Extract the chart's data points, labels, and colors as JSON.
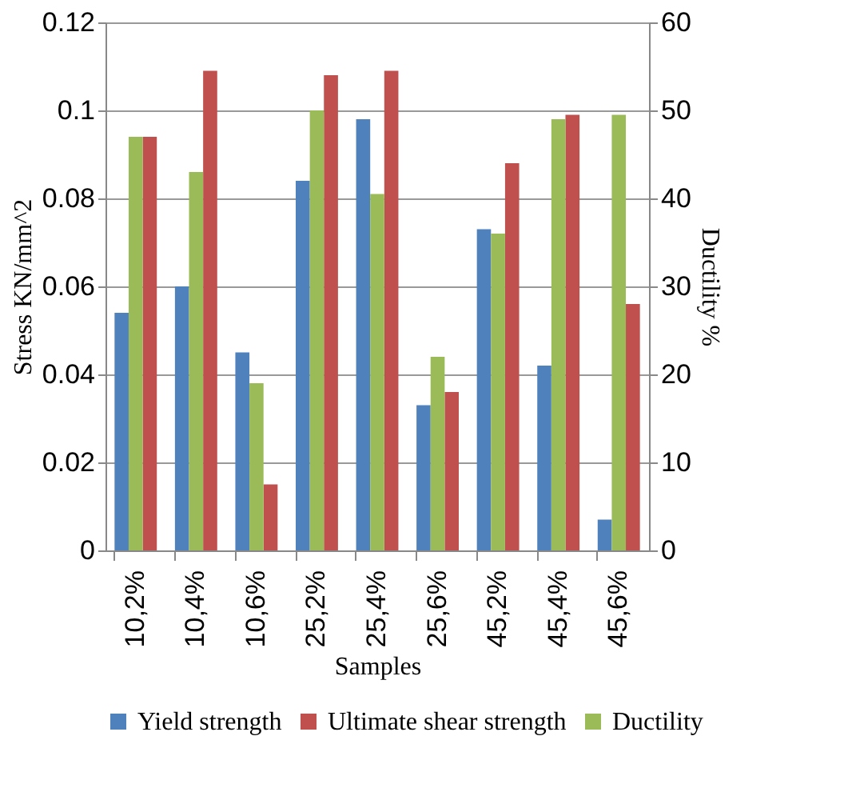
{
  "chart_data": {
    "type": "bar",
    "xlabel": "Samples",
    "ylabel": "Stress KN/mm^2",
    "y2label": "Ductility %",
    "categories": [
      "10,2%",
      "10,4%",
      "10,6%",
      "25,2%",
      "25,4%",
      "25,6%",
      "45,2%",
      "45,4%",
      "45,6%"
    ],
    "series": [
      {
        "name": "Yield strength",
        "color": "#4f81bd",
        "values": [
          0.054,
          0.06,
          0.045,
          0.084,
          0.098,
          0.033,
          0.073,
          0.042,
          0.007
        ]
      },
      {
        "name": "Ultimate shear strength",
        "color": "#c0504d",
        "values": [
          0.094,
          0.109,
          0.015,
          0.108,
          0.109,
          0.036,
          0.088,
          0.099,
          0.056
        ]
      },
      {
        "name": "Ductility",
        "color": "#9bbb59",
        "axis": "y2",
        "values": [
          47,
          43,
          19,
          50,
          40.5,
          22,
          36,
          49,
          49.5
        ]
      }
    ],
    "ylim": [
      0,
      0.12
    ],
    "yticks": [
      0,
      0.02,
      0.04,
      0.06,
      0.08,
      0.1,
      0.12
    ],
    "y2lim": [
      0,
      60
    ],
    "y2ticks": [
      0,
      10,
      20,
      30,
      40,
      50,
      60
    ],
    "grid": "y",
    "legend": "bottom"
  }
}
